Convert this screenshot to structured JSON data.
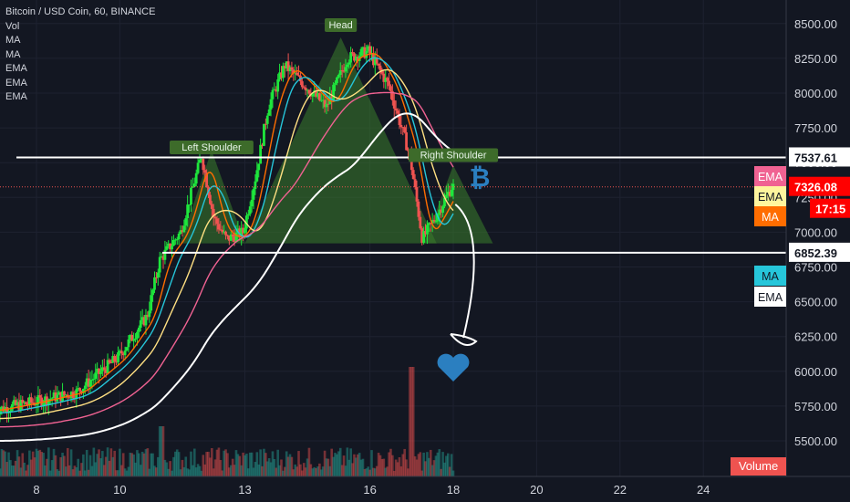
{
  "legend": {
    "symbol": "Bitcoin / USD Coin, 60, BINANCE",
    "indicators": [
      "Vol",
      "MA",
      "MA",
      "EMA",
      "EMA",
      "EMA"
    ]
  },
  "chart_data": {
    "type": "candlestick",
    "ylim": [
      5320,
      8650
    ],
    "x_range": [
      "7",
      "25"
    ],
    "y_ticks": [
      5500,
      5750,
      6000,
      6250,
      6500,
      6750,
      7000,
      7250,
      7500,
      7750,
      8000,
      8250,
      8500
    ],
    "y_tick_labels": [
      "5500.00",
      "5750.00",
      "6000.00",
      "6250.00",
      "6500.00",
      "6750.00",
      "7000.00",
      "7250.00",
      "7500.00",
      "7750.00",
      "8000.00",
      "8250.00",
      "8500.00"
    ],
    "x_ticks": [
      8,
      10,
      13,
      16,
      18,
      20,
      22,
      24
    ],
    "x_tick_labels": [
      "8",
      "10",
      "13",
      "16",
      "18",
      "20",
      "22",
      "24"
    ],
    "price_path": [
      [
        7.0,
        5720
      ],
      [
        8.0,
        5780
      ],
      [
        9.0,
        5850
      ],
      [
        10.0,
        6100
      ],
      [
        10.7,
        6400
      ],
      [
        11.0,
        6800
      ],
      [
        11.5,
        7000
      ],
      [
        12.0,
        7550
      ],
      [
        12.3,
        7100
      ],
      [
        12.6,
        6950
      ],
      [
        13.0,
        7000
      ],
      [
        13.3,
        7400
      ],
      [
        13.6,
        7900
      ],
      [
        14.0,
        8200
      ],
      [
        14.5,
        8050
      ],
      [
        15.0,
        7900
      ],
      [
        15.5,
        8250
      ],
      [
        16.0,
        8300
      ],
      [
        16.5,
        8050
      ],
      [
        17.0,
        7550
      ],
      [
        17.3,
        6950
      ],
      [
        17.6,
        7100
      ],
      [
        18.0,
        7326
      ]
    ],
    "horizontal_lines": [
      7537.61,
      6852.39
    ],
    "pattern_labels": [
      "Left Shoulder",
      "Head",
      "Right Shoulder"
    ],
    "price_badges": [
      {
        "value": "7537.61",
        "color": "#ffffff",
        "text_color": "#131722"
      },
      {
        "value": "7326.08",
        "color": "#ff0000",
        "text_color": "#ffffff"
      },
      {
        "value": "17:15",
        "color": "#ff0000",
        "text_color": "#ffffff"
      },
      {
        "value": "6852.39",
        "color": "#ffffff",
        "text_color": "#131722"
      }
    ],
    "indicator_badges": [
      {
        "label": "EMA",
        "color": "#f06292",
        "text_color": "#ffffff"
      },
      {
        "label": "EMA",
        "color": "#fff59d",
        "text_color": "#131722"
      },
      {
        "label": "MA",
        "color": "#ff6d00",
        "text_color": "#ffffff"
      },
      {
        "label": "MA",
        "color": "#26c6da",
        "text_color": "#131722"
      },
      {
        "label": "EMA",
        "color": "#ffffff",
        "text_color": "#131722"
      }
    ],
    "volume_label": "Volume",
    "colors": {
      "up": "#26a69a",
      "down": "#ef5350",
      "ema_pink": "#f06292",
      "ema_yellow": "#ffe082",
      "ma_orange": "#ff6d00",
      "ma_cyan": "#26c6da",
      "ema_white": "#ffffff",
      "pattern_fill": "#3a7d2c",
      "heart": "#2b7fc0"
    }
  }
}
